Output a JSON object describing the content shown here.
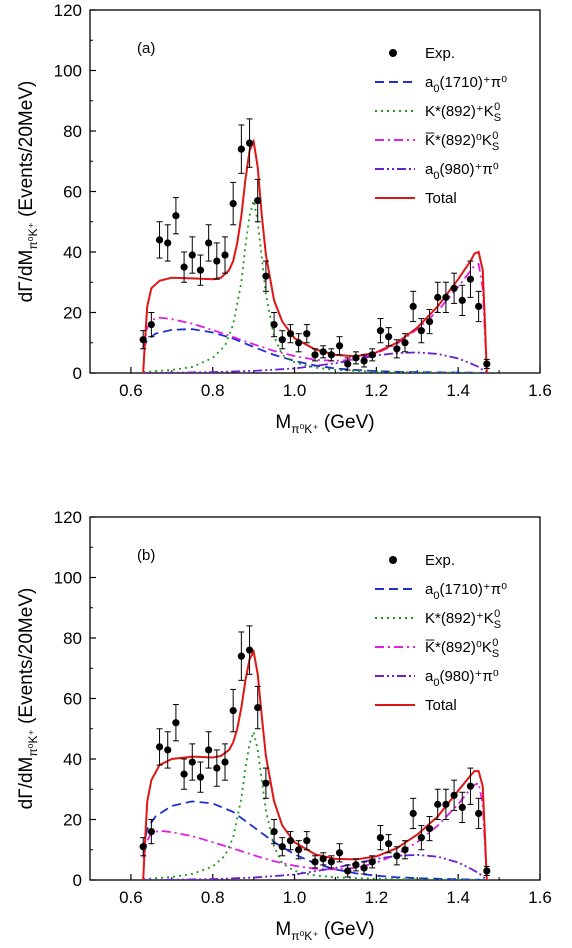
{
  "chart_data": [
    {
      "type": "line",
      "panel_label": "(a)",
      "xlabel_main": "M",
      "xlabel_sub": "π⁰K⁺",
      "xlabel_unit": " (GeV)",
      "ylabel_main": "dΓ/dM",
      "ylabel_sub": "π⁰K⁺",
      "ylabel_unit": " (Events/20MeV)",
      "xlim": [
        0.5,
        1.6
      ],
      "ylim": [
        0,
        120
      ],
      "x_ticks": [
        "0.6",
        "0.8",
        "1.0",
        "1.2",
        "1.4",
        "1.6"
      ],
      "y_ticks": [
        "0",
        "20",
        "40",
        "60",
        "80",
        "100",
        "120"
      ],
      "legend_position": "top-right",
      "legend": [
        {
          "main": "Exp.",
          "sub": "",
          "sup": "",
          "rest": "",
          "marker": "point",
          "color": "#000000"
        },
        {
          "main": "a",
          "sub": "0",
          "sup": "",
          "rest": "(1710)⁺π⁰",
          "marker": "dashed",
          "color": "#1f2fd0"
        },
        {
          "main": "K*(892)⁺K",
          "sub": "S",
          "sup": "0",
          "rest": "",
          "marker": "dotted",
          "color": "#1a9a1a"
        },
        {
          "main": "K̅*(892)⁰K",
          "sub": "S",
          "sup": "0",
          "rest": "",
          "marker": "dashdot",
          "color": "#e21ee2"
        },
        {
          "main": "a",
          "sub": "0",
          "sup": "",
          "rest": "(980)⁺π⁰",
          "marker": "dashdotdot",
          "color": "#6a1fd0"
        },
        {
          "main": "Total",
          "sub": "",
          "sup": "",
          "rest": "",
          "marker": "solid",
          "color": "#e01515"
        }
      ],
      "points": [
        {
          "x": 0.63,
          "y": 11,
          "err": 3
        },
        {
          "x": 0.65,
          "y": 16,
          "err": 4
        },
        {
          "x": 0.67,
          "y": 44,
          "err": 6
        },
        {
          "x": 0.69,
          "y": 43,
          "err": 6
        },
        {
          "x": 0.71,
          "y": 52,
          "err": 6
        },
        {
          "x": 0.73,
          "y": 35,
          "err": 5
        },
        {
          "x": 0.75,
          "y": 39,
          "err": 6
        },
        {
          "x": 0.77,
          "y": 34,
          "err": 5
        },
        {
          "x": 0.79,
          "y": 43,
          "err": 6
        },
        {
          "x": 0.81,
          "y": 37,
          "err": 6
        },
        {
          "x": 0.83,
          "y": 39,
          "err": 6
        },
        {
          "x": 0.85,
          "y": 56,
          "err": 7
        },
        {
          "x": 0.87,
          "y": 74,
          "err": 8
        },
        {
          "x": 0.89,
          "y": 76,
          "err": 8
        },
        {
          "x": 0.91,
          "y": 57,
          "err": 7
        },
        {
          "x": 0.93,
          "y": 32,
          "err": 5
        },
        {
          "x": 0.95,
          "y": 16,
          "err": 4
        },
        {
          "x": 0.97,
          "y": 11,
          "err": 3
        },
        {
          "x": 0.99,
          "y": 13,
          "err": 3
        },
        {
          "x": 1.01,
          "y": 10,
          "err": 3
        },
        {
          "x": 1.03,
          "y": 13,
          "err": 3
        },
        {
          "x": 1.05,
          "y": 6,
          "err": 2
        },
        {
          "x": 1.07,
          "y": 7,
          "err": 2
        },
        {
          "x": 1.09,
          "y": 6,
          "err": 2
        },
        {
          "x": 1.11,
          "y": 9,
          "err": 3
        },
        {
          "x": 1.13,
          "y": 3,
          "err": 2
        },
        {
          "x": 1.15,
          "y": 5,
          "err": 2
        },
        {
          "x": 1.17,
          "y": 4,
          "err": 2
        },
        {
          "x": 1.19,
          "y": 6,
          "err": 2
        },
        {
          "x": 1.21,
          "y": 14,
          "err": 4
        },
        {
          "x": 1.23,
          "y": 12,
          "err": 3
        },
        {
          "x": 1.25,
          "y": 8,
          "err": 3
        },
        {
          "x": 1.27,
          "y": 10,
          "err": 3
        },
        {
          "x": 1.29,
          "y": 22,
          "err": 5
        },
        {
          "x": 1.31,
          "y": 14,
          "err": 4
        },
        {
          "x": 1.33,
          "y": 17,
          "err": 4
        },
        {
          "x": 1.35,
          "y": 25,
          "err": 5
        },
        {
          "x": 1.37,
          "y": 25,
          "err": 5
        },
        {
          "x": 1.39,
          "y": 28,
          "err": 5
        },
        {
          "x": 1.41,
          "y": 24,
          "err": 5
        },
        {
          "x": 1.43,
          "y": 31,
          "err": 6
        },
        {
          "x": 1.45,
          "y": 22,
          "err": 5
        },
        {
          "x": 1.47,
          "y": 3,
          "err": 1.5
        }
      ],
      "series": [
        {
          "curve": "dashed",
          "x": [
            0.63,
            0.64,
            0.66,
            0.7,
            0.75,
            0.8,
            0.85,
            0.9,
            0.95,
            1.0,
            1.05,
            1.1,
            1.15,
            1.2,
            1.25,
            1.3,
            1.35,
            1.4,
            1.44,
            1.46,
            1.47
          ],
          "y": [
            8,
            11,
            13,
            14.3,
            14.5,
            13.4,
            11.4,
            8.6,
            6,
            4,
            2.5,
            1.5,
            1,
            0.6,
            0.4,
            0.3,
            0.2,
            0.15,
            0.1,
            0.05,
            0
          ]
        },
        {
          "curve": "dotted",
          "x": [
            0.63,
            0.7,
            0.75,
            0.8,
            0.83,
            0.85,
            0.87,
            0.88,
            0.89,
            0.9,
            0.91,
            0.92,
            0.93,
            0.95,
            0.97,
            1.0,
            1.05,
            1.1,
            1.2,
            1.3,
            1.47
          ],
          "y": [
            0.3,
            1,
            2,
            5,
            9,
            16,
            30,
            42,
            52,
            57,
            50,
            38,
            26,
            12,
            6,
            3.5,
            1.8,
            1,
            0.4,
            0.2,
            0
          ]
        },
        {
          "curve": "dashdot",
          "x": [
            0.63,
            0.64,
            0.65,
            0.67,
            0.7,
            0.75,
            0.8,
            0.85,
            0.9,
            0.95,
            1.0,
            1.05,
            1.1,
            1.15,
            1.2,
            1.25,
            1.3,
            1.35,
            1.4,
            1.42,
            1.44,
            1.45,
            1.46,
            1.47
          ],
          "y": [
            8,
            15,
            17.5,
            18.3,
            17.8,
            16.3,
            14.2,
            11.9,
            9.5,
            7.3,
            5.6,
            4.4,
            4,
            4.5,
            6.5,
            9.6,
            14.5,
            20.5,
            28.5,
            32,
            35.5,
            36,
            28,
            0
          ]
        },
        {
          "curve": "dashdotdot",
          "x": [
            0.63,
            0.7,
            0.8,
            0.9,
            1.0,
            1.1,
            1.15,
            1.2,
            1.25,
            1.3,
            1.35,
            1.4,
            1.43,
            1.45,
            1.47
          ],
          "y": [
            0,
            0.1,
            0.3,
            0.7,
            1.5,
            3.2,
            4.5,
            5.8,
            6.6,
            6.8,
            6.3,
            4.8,
            3.2,
            2,
            0
          ]
        },
        {
          "curve": "solid",
          "x": [
            0.63,
            0.635,
            0.64,
            0.65,
            0.67,
            0.7,
            0.75,
            0.8,
            0.82,
            0.84,
            0.85,
            0.86,
            0.87,
            0.88,
            0.89,
            0.9,
            0.91,
            0.92,
            0.93,
            0.95,
            0.97,
            1.0,
            1.05,
            1.1,
            1.15,
            1.2,
            1.25,
            1.3,
            1.35,
            1.4,
            1.43,
            1.44,
            1.45,
            1.46,
            1.465,
            1.47
          ],
          "y": [
            0,
            12,
            22,
            28,
            30.5,
            31.5,
            31.3,
            31,
            31.5,
            34,
            37,
            43,
            52,
            64,
            73.5,
            76.5,
            68,
            52,
            39,
            24,
            17,
            11.5,
            7.8,
            6,
            5.5,
            6.8,
            10,
            15,
            22,
            31,
            37,
            39.5,
            40,
            34,
            18,
            0
          ]
        }
      ]
    },
    {
      "type": "line",
      "panel_label": "(b)",
      "xlabel_main": "M",
      "xlabel_sub": "π⁰K⁺",
      "xlabel_unit": " (GeV)",
      "ylabel_main": "dΓ/dM",
      "ylabel_sub": "π⁰K⁺",
      "ylabel_unit": " (Events/20MeV)",
      "xlim": [
        0.5,
        1.6
      ],
      "ylim": [
        0,
        120
      ],
      "x_ticks": [
        "0.6",
        "0.8",
        "1.0",
        "1.2",
        "1.4",
        "1.6"
      ],
      "y_ticks": [
        "0",
        "20",
        "40",
        "60",
        "80",
        "100",
        "120"
      ],
      "legend_position": "top-right",
      "legend": [
        {
          "main": "Exp.",
          "sub": "",
          "sup": "",
          "rest": "",
          "marker": "point",
          "color": "#000000"
        },
        {
          "main": "a",
          "sub": "0",
          "sup": "",
          "rest": "(1710)⁺π⁰",
          "marker": "dashed",
          "color": "#1f2fd0"
        },
        {
          "main": "K*(892)⁺K",
          "sub": "S",
          "sup": "0",
          "rest": "",
          "marker": "dotted",
          "color": "#1a9a1a"
        },
        {
          "main": "K̅*(892)⁰K",
          "sub": "S",
          "sup": "0",
          "rest": "",
          "marker": "dashdot",
          "color": "#e21ee2"
        },
        {
          "main": "a",
          "sub": "0",
          "sup": "",
          "rest": "(980)⁺π⁰",
          "marker": "dashdotdot",
          "color": "#6a1fd0"
        },
        {
          "main": "Total",
          "sub": "",
          "sup": "",
          "rest": "",
          "marker": "solid",
          "color": "#e01515"
        }
      ],
      "points": [
        {
          "x": 0.63,
          "y": 11,
          "err": 3
        },
        {
          "x": 0.65,
          "y": 16,
          "err": 4
        },
        {
          "x": 0.67,
          "y": 44,
          "err": 6
        },
        {
          "x": 0.69,
          "y": 43,
          "err": 6
        },
        {
          "x": 0.71,
          "y": 52,
          "err": 6
        },
        {
          "x": 0.73,
          "y": 35,
          "err": 5
        },
        {
          "x": 0.75,
          "y": 39,
          "err": 6
        },
        {
          "x": 0.77,
          "y": 34,
          "err": 5
        },
        {
          "x": 0.79,
          "y": 43,
          "err": 6
        },
        {
          "x": 0.81,
          "y": 37,
          "err": 6
        },
        {
          "x": 0.83,
          "y": 39,
          "err": 6
        },
        {
          "x": 0.85,
          "y": 56,
          "err": 7
        },
        {
          "x": 0.87,
          "y": 74,
          "err": 8
        },
        {
          "x": 0.89,
          "y": 76,
          "err": 8
        },
        {
          "x": 0.91,
          "y": 57,
          "err": 7
        },
        {
          "x": 0.93,
          "y": 32,
          "err": 5
        },
        {
          "x": 0.95,
          "y": 16,
          "err": 4
        },
        {
          "x": 0.97,
          "y": 11,
          "err": 3
        },
        {
          "x": 0.99,
          "y": 13,
          "err": 3
        },
        {
          "x": 1.01,
          "y": 10,
          "err": 3
        },
        {
          "x": 1.03,
          "y": 13,
          "err": 3
        },
        {
          "x": 1.05,
          "y": 6,
          "err": 2
        },
        {
          "x": 1.07,
          "y": 7,
          "err": 2
        },
        {
          "x": 1.09,
          "y": 6,
          "err": 2
        },
        {
          "x": 1.11,
          "y": 9,
          "err": 3
        },
        {
          "x": 1.13,
          "y": 3,
          "err": 2
        },
        {
          "x": 1.15,
          "y": 5,
          "err": 2
        },
        {
          "x": 1.17,
          "y": 4,
          "err": 2
        },
        {
          "x": 1.19,
          "y": 6,
          "err": 2
        },
        {
          "x": 1.21,
          "y": 14,
          "err": 4
        },
        {
          "x": 1.23,
          "y": 12,
          "err": 3
        },
        {
          "x": 1.25,
          "y": 8,
          "err": 3
        },
        {
          "x": 1.27,
          "y": 10,
          "err": 3
        },
        {
          "x": 1.29,
          "y": 22,
          "err": 5
        },
        {
          "x": 1.31,
          "y": 14,
          "err": 4
        },
        {
          "x": 1.33,
          "y": 17,
          "err": 4
        },
        {
          "x": 1.35,
          "y": 25,
          "err": 5
        },
        {
          "x": 1.37,
          "y": 25,
          "err": 5
        },
        {
          "x": 1.39,
          "y": 28,
          "err": 5
        },
        {
          "x": 1.41,
          "y": 24,
          "err": 5
        },
        {
          "x": 1.43,
          "y": 31,
          "err": 6
        },
        {
          "x": 1.45,
          "y": 22,
          "err": 5
        },
        {
          "x": 1.47,
          "y": 3,
          "err": 1.5
        }
      ],
      "series": [
        {
          "curve": "dashed",
          "x": [
            0.63,
            0.64,
            0.66,
            0.7,
            0.75,
            0.8,
            0.85,
            0.9,
            0.95,
            1.0,
            1.05,
            1.1,
            1.15,
            1.2,
            1.25,
            1.3,
            1.35,
            1.4,
            1.44,
            1.46,
            1.47
          ],
          "y": [
            10,
            17,
            21,
            24.5,
            26,
            25.3,
            22.5,
            17.5,
            12.5,
            8.5,
            5.5,
            3.5,
            2.2,
            1.4,
            0.9,
            0.6,
            0.4,
            0.25,
            0.15,
            0.05,
            0
          ]
        },
        {
          "curve": "dotted",
          "x": [
            0.63,
            0.7,
            0.75,
            0.8,
            0.83,
            0.85,
            0.87,
            0.88,
            0.89,
            0.9,
            0.91,
            0.92,
            0.93,
            0.95,
            0.97,
            1.0,
            1.05,
            1.1,
            1.2,
            1.3,
            1.47
          ],
          "y": [
            0.3,
            1,
            2,
            4.5,
            8,
            14,
            27,
            37,
            45,
            49,
            43,
            33,
            23,
            11,
            5.5,
            3,
            1.5,
            0.9,
            0.4,
            0.2,
            0
          ]
        },
        {
          "curve": "dashdot",
          "x": [
            0.63,
            0.64,
            0.65,
            0.67,
            0.7,
            0.75,
            0.8,
            0.85,
            0.9,
            0.95,
            1.0,
            1.05,
            1.1,
            1.15,
            1.2,
            1.25,
            1.3,
            1.35,
            1.4,
            1.42,
            1.44,
            1.45,
            1.46,
            1.47
          ],
          "y": [
            7,
            13,
            15.5,
            16.3,
            15.8,
            14.5,
            12.5,
            10.4,
            8.2,
            6.2,
            4.7,
            3.7,
            3.5,
            4,
            5.7,
            8.5,
            12.5,
            18,
            25,
            28.5,
            31.5,
            32,
            25,
            0
          ]
        },
        {
          "curve": "dashdotdot",
          "x": [
            0.63,
            0.7,
            0.8,
            0.9,
            1.0,
            1.1,
            1.15,
            1.2,
            1.25,
            1.3,
            1.35,
            1.4,
            1.43,
            1.45,
            1.47
          ],
          "y": [
            0,
            0.1,
            0.3,
            0.8,
            1.8,
            4,
            5.5,
            7,
            8,
            8.3,
            7.7,
            5.8,
            3.8,
            2.3,
            0
          ]
        },
        {
          "curve": "solid",
          "x": [
            0.63,
            0.635,
            0.64,
            0.65,
            0.67,
            0.7,
            0.75,
            0.8,
            0.82,
            0.84,
            0.85,
            0.86,
            0.87,
            0.88,
            0.89,
            0.9,
            0.91,
            0.92,
            0.93,
            0.95,
            0.97,
            1.0,
            1.05,
            1.1,
            1.15,
            1.2,
            1.25,
            1.3,
            1.35,
            1.4,
            1.43,
            1.44,
            1.45,
            1.46,
            1.465,
            1.47
          ],
          "y": [
            0,
            14,
            26,
            33,
            38,
            40,
            40.8,
            40.5,
            41,
            43,
            45.5,
            50,
            57,
            66,
            73,
            75.5,
            68,
            54,
            41,
            26,
            18,
            12.5,
            8.5,
            7,
            6.8,
            7.8,
            10.5,
            15,
            21,
            29.5,
            34.5,
            36,
            36,
            31,
            16,
            0
          ]
        }
      ]
    }
  ]
}
